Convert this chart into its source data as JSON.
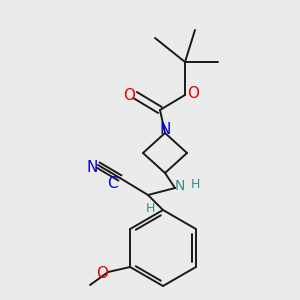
{
  "background_color": "#ebebeb",
  "colors": {
    "bond": "#1a1a1a",
    "N_blue": "#0000ee",
    "O_red": "#ee0000",
    "N_teal": "#3a8a8a",
    "background": "#ebebeb"
  },
  "layout": {
    "xlim": [
      0,
      300
    ],
    "ylim": [
      300,
      0
    ],
    "figsize": [
      3.0,
      3.0
    ],
    "dpi": 100
  }
}
